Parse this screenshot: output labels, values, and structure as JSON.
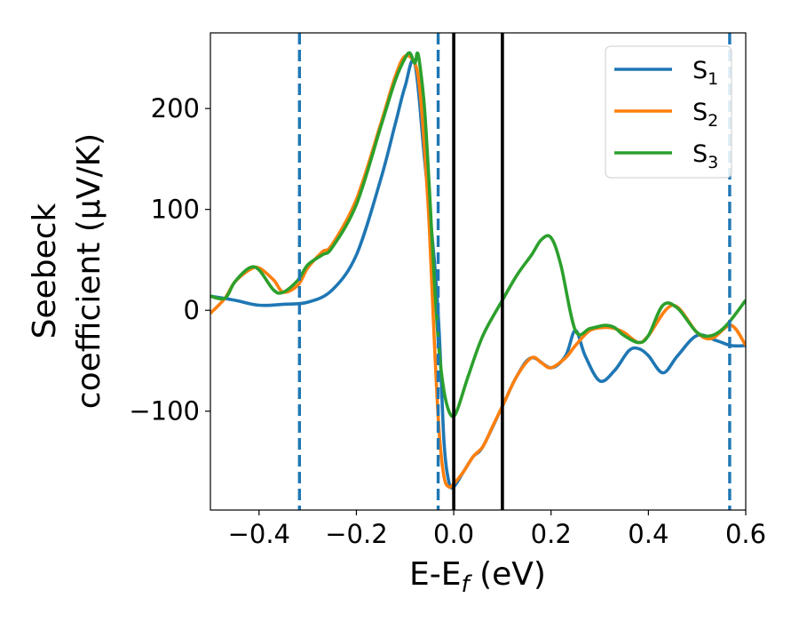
{
  "chart_data": {
    "type": "line",
    "xlabel": "E-E",
    "xlabel_sub": "f",
    "xlabel_unit": " (eV)",
    "ylabel_line1": "Seebeck",
    "ylabel_line2": "coefficient  (μV/K)",
    "xlim": [
      -0.5,
      0.6
    ],
    "ylim": [
      -198,
      275
    ],
    "xticks": [
      -0.4,
      -0.2,
      0.0,
      0.2,
      0.4,
      0.6
    ],
    "xtick_labels": [
      "−0.4",
      "−0.2",
      "0.0",
      "0.2",
      "0.4",
      "0.6"
    ],
    "yticks": [
      -100,
      0,
      100,
      200
    ],
    "ytick_labels": [
      "−100",
      "0",
      "100",
      "200"
    ],
    "grid": false,
    "legend_position": "top-right",
    "vlines_dashed": [
      -0.317,
      -0.032,
      0.567
    ],
    "vlines_solid": [
      0.0,
      0.1
    ],
    "colors": {
      "S1": "#1f77b4",
      "S2": "#ff7f0e",
      "S3": "#2ca02c",
      "dashed_lines": "#1f77b4",
      "solid_lines": "#000000"
    },
    "series": [
      {
        "name": "S1",
        "label_main": "S",
        "label_sub": "1",
        "color": "#1f77b4",
        "x": [
          -0.5,
          -0.45,
          -0.4,
          -0.35,
          -0.3,
          -0.25,
          -0.2,
          -0.15,
          -0.12,
          -0.1,
          -0.08,
          -0.06,
          -0.04,
          -0.03,
          -0.02,
          -0.01,
          0.0,
          0.02,
          0.04,
          0.06,
          0.1,
          0.13,
          0.16,
          0.2,
          0.23,
          0.25,
          0.27,
          0.3,
          0.33,
          0.36,
          0.38,
          0.4,
          0.43,
          0.46,
          0.5,
          0.54,
          0.57,
          0.6
        ],
        "y": [
          14,
          10,
          5,
          6,
          8,
          20,
          55,
          130,
          185,
          222,
          245,
          150,
          50,
          -20,
          -130,
          -170,
          -175,
          -160,
          -145,
          -135,
          -95,
          -65,
          -47,
          -57,
          -45,
          -20,
          -45,
          -70,
          -60,
          -40,
          -38,
          -45,
          -62,
          -45,
          -25,
          -30,
          -35,
          -35
        ]
      },
      {
        "name": "S2",
        "label_main": "S",
        "label_sub": "2",
        "color": "#ff7f0e",
        "x": [
          -0.5,
          -0.47,
          -0.45,
          -0.42,
          -0.4,
          -0.37,
          -0.35,
          -0.32,
          -0.3,
          -0.27,
          -0.25,
          -0.2,
          -0.15,
          -0.12,
          -0.1,
          -0.08,
          -0.07,
          -0.06,
          -0.05,
          -0.04,
          -0.03,
          -0.02,
          -0.01,
          0.0,
          0.02,
          0.04,
          0.06,
          0.08,
          0.1,
          0.13,
          0.16,
          0.18,
          0.2,
          0.23,
          0.25,
          0.28,
          0.31,
          0.33,
          0.35,
          0.38,
          0.4,
          0.45,
          0.5,
          0.53,
          0.57,
          0.6
        ],
        "y": [
          -3,
          12,
          28,
          40,
          42,
          30,
          18,
          25,
          42,
          58,
          65,
          110,
          185,
          232,
          252,
          245,
          220,
          160,
          80,
          -30,
          -120,
          -165,
          -175,
          -172,
          -160,
          -145,
          -135,
          -115,
          -95,
          -65,
          -47,
          -52,
          -57,
          -47,
          -35,
          -20,
          -17,
          -18,
          -22,
          -32,
          -25,
          5,
          -22,
          -28,
          -15,
          -35
        ]
      },
      {
        "name": "S3",
        "label_main": "S",
        "label_sub": "3",
        "color": "#2ca02c",
        "x": [
          -0.5,
          -0.47,
          -0.45,
          -0.42,
          -0.4,
          -0.37,
          -0.35,
          -0.32,
          -0.3,
          -0.27,
          -0.25,
          -0.2,
          -0.15,
          -0.12,
          -0.1,
          -0.09,
          -0.08,
          -0.075,
          -0.07,
          -0.06,
          -0.05,
          -0.04,
          -0.03,
          -0.02,
          -0.01,
          0.0,
          0.01,
          0.03,
          0.06,
          0.1,
          0.13,
          0.16,
          0.18,
          0.2,
          0.22,
          0.25,
          0.28,
          0.31,
          0.33,
          0.35,
          0.38,
          0.4,
          0.43,
          0.46,
          0.5,
          0.53,
          0.56,
          0.6
        ],
        "y": [
          14,
          12,
          28,
          42,
          40,
          20,
          18,
          30,
          45,
          55,
          62,
          105,
          182,
          228,
          250,
          255,
          245,
          255,
          245,
          200,
          120,
          30,
          -40,
          -80,
          -100,
          -105,
          -95,
          -65,
          -25,
          10,
          35,
          55,
          70,
          72,
          45,
          -20,
          -18,
          -15,
          -17,
          -25,
          -32,
          -25,
          5,
          2,
          -22,
          -25,
          -15,
          10
        ]
      }
    ]
  }
}
